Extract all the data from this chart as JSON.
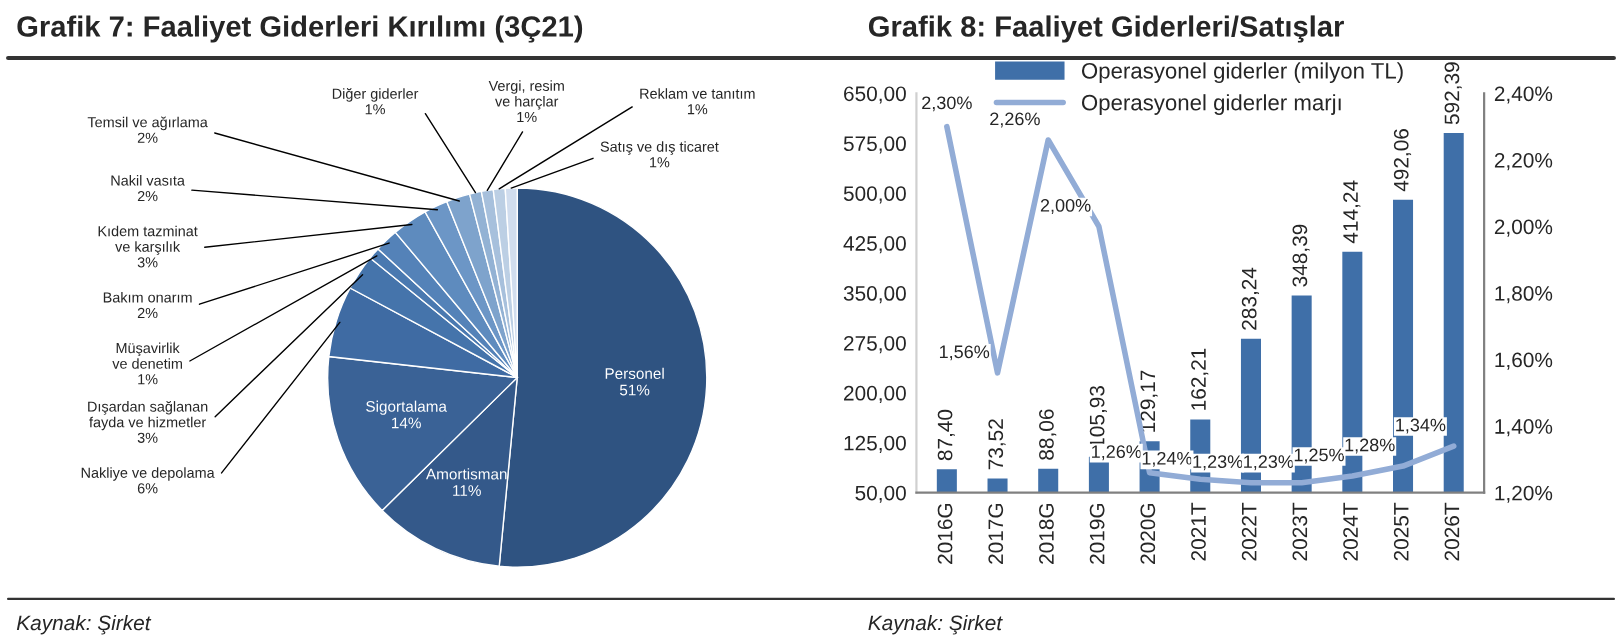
{
  "chart_data": [
    {
      "type": "pie",
      "title": "Grafik 7: Faaliyet Giderleri Kırılımı (3Ç21)",
      "categories": [
        "Personel",
        "Amortisman",
        "Sigortalama",
        "Nakliye ve depolama",
        "Dışardan sağlanan fayda ve hizmetler",
        "Müşavirlik ve denetim",
        "Bakım onarım",
        "Kıdem tazminat ve karşılık",
        "Nakil vasıta",
        "Temsil ve ağırlama",
        "Diğer giderler",
        "Vergi, resim ve harçlar",
        "Reklam ve tanıtım",
        "Satış ve dış ticaret"
      ],
      "values": [
        51,
        11,
        14,
        6,
        3,
        1,
        2,
        3,
        2,
        2,
        1,
        1,
        1,
        1
      ],
      "value_labels": [
        "51%",
        "11%",
        "14%",
        "6%",
        "3%",
        "1%",
        "2%",
        "3%",
        "2%",
        "2%",
        "1%",
        "1%",
        "1%",
        "1%"
      ],
      "colors": [
        "#2f5381",
        "#34598a",
        "#3a6296",
        "#3f6ba3",
        "#4574ab",
        "#4a79b0",
        "#5482b8",
        "#5e8bbe",
        "#6c96c6",
        "#7ea3cc",
        "#93b2d4",
        "#a7c0dc",
        "#bccfe4",
        "#d1ddee"
      ],
      "annotations": [
        "Kaynak: Şirket"
      ]
    },
    {
      "type": "bar",
      "title": "Grafik 8: Faaliyet Giderleri/Satışlar",
      "categories": [
        "2016G",
        "2017G",
        "2018G",
        "2019G",
        "2020G",
        "2021T",
        "2022T",
        "2023T",
        "2024T",
        "2025T",
        "2026T"
      ],
      "series": [
        {
          "name": "Operasyonel giderler (milyon TL)",
          "type": "bar",
          "color": "#3f6fa8",
          "values": [
            87.4,
            73.52,
            88.06,
            105.93,
            129.17,
            162.21,
            283.24,
            348.39,
            414.24,
            492.06,
            592.39
          ],
          "value_labels": [
            "87,40",
            "73,52",
            "88,06",
            "105,93",
            "129,17",
            "162,21",
            "283,24",
            "348,39",
            "414,24",
            "492,06",
            "592,39"
          ]
        },
        {
          "name": "Operasyonel giderler marjı",
          "type": "line",
          "axis": "y2",
          "color": "#92acd6",
          "values": [
            2.3,
            1.56,
            2.26,
            2.0,
            1.26,
            1.24,
            1.23,
            1.23,
            1.25,
            1.28,
            1.34
          ],
          "value_labels": [
            "2,30%",
            "1,56%",
            "2,26%",
            "2,00%",
            "1,26%",
            "1,24%",
            "1,23%",
            "1,23%",
            "1,25%",
            "1,28%",
            "1,34%"
          ]
        }
      ],
      "ylim": [
        50,
        650
      ],
      "yticks": [
        {
          "value": 50,
          "label": "50,00"
        },
        {
          "value": 125,
          "label": "125,00"
        },
        {
          "value": 200,
          "label": "200,00"
        },
        {
          "value": 275,
          "label": "275,00"
        },
        {
          "value": 350,
          "label": "350,00"
        },
        {
          "value": 425,
          "label": "425,00"
        },
        {
          "value": 500,
          "label": "500,00"
        },
        {
          "value": 575,
          "label": "575,00"
        },
        {
          "value": 650,
          "label": "650,00"
        }
      ],
      "y2lim": [
        1.2,
        2.4
      ],
      "y2ticks": [
        {
          "value": 1.2,
          "label": "1,20%"
        },
        {
          "value": 1.4,
          "label": "1,40%"
        },
        {
          "value": 1.6,
          "label": "1,60%"
        },
        {
          "value": 1.8,
          "label": "1,80%"
        },
        {
          "value": 2.0,
          "label": "2,00%"
        },
        {
          "value": 2.2,
          "label": "2,20%"
        },
        {
          "value": 2.4,
          "label": "2,40%"
        }
      ],
      "legend": "top",
      "grid": false,
      "marker": "none",
      "line_style": "solid",
      "annotations": [
        "Kaynak: Şirket"
      ]
    }
  ]
}
